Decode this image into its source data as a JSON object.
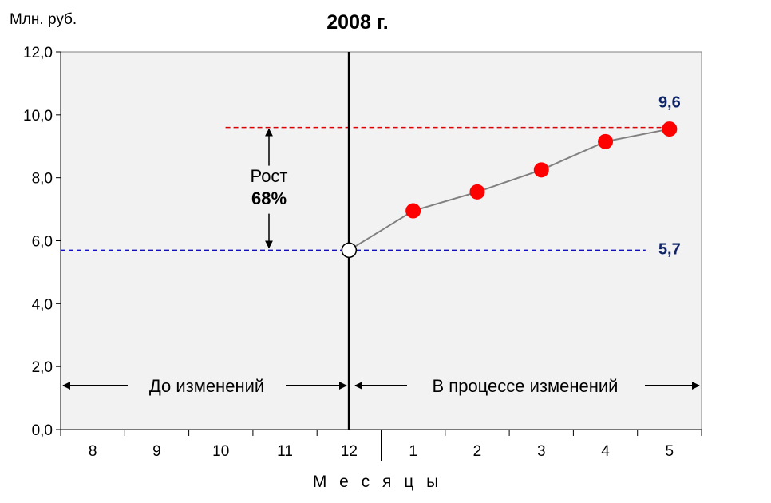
{
  "chart_data": {
    "type": "line",
    "title": "2008 г.",
    "ylabel": "Млн. руб.",
    "xlabel": "М е с я ц ы",
    "ylim": [
      0,
      12
    ],
    "yticks": [
      "0,0",
      "2,0",
      "4,0",
      "6,0",
      "8,0",
      "10,0",
      "12,0"
    ],
    "ytick_values": [
      0,
      2,
      4,
      6,
      8,
      10,
      12
    ],
    "categories": [
      "8",
      "9",
      "10",
      "11",
      "12",
      "1",
      "2",
      "3",
      "4",
      "5"
    ],
    "series": [
      {
        "x": [
          "12",
          "1",
          "2",
          "3",
          "4",
          "5"
        ],
        "values": [
          5.7,
          6.95,
          7.55,
          8.25,
          9.15,
          9.55
        ]
      }
    ],
    "reference_lines": [
      {
        "value": 9.6,
        "label": "9,6",
        "color": "#e00000",
        "start_category": "10",
        "end_category": "5"
      },
      {
        "value": 5.7,
        "label": "5,7",
        "color": "#1010c0",
        "start_category": "8",
        "end_category": "5"
      }
    ],
    "growth": {
      "label": "Рост",
      "value": "68%",
      "from": 5.7,
      "to": 9.6
    },
    "periods": [
      {
        "label": "До изменений"
      },
      {
        "label": "В процессе изменений"
      }
    ],
    "grid": false,
    "colors": {
      "plot_bg": "#f2f2f2",
      "marker": "#ff0000",
      "line": "#808080",
      "start_marker": "#ffffff",
      "value_label": "#0d2366"
    }
  }
}
